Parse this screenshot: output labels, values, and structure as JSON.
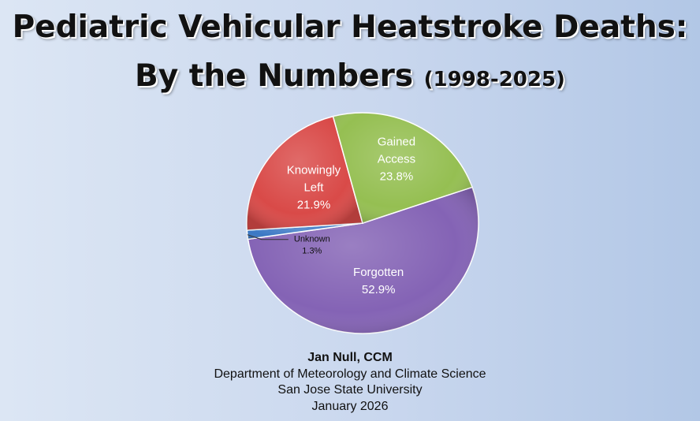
{
  "chart_data": {
    "type": "pie",
    "title_line1": "Pediatric Vehicular Heatstroke Deaths:",
    "title_line2": "By the Numbers",
    "title_years": "(1998-2025)",
    "slices": [
      {
        "label_lines": [
          "Forgotten"
        ],
        "percent_label": "52.9%",
        "value": 52.9,
        "color": "#8463b5"
      },
      {
        "label_lines": [
          "Unknown"
        ],
        "percent_label": "1.3%",
        "value": 1.3,
        "color": "#3b78c4"
      },
      {
        "label_lines": [
          "Knowingly",
          "Left"
        ],
        "percent_label": "21.9%",
        "value": 21.9,
        "color": "#d94a48"
      },
      {
        "label_lines": [
          "Gained",
          "Access"
        ],
        "percent_label": "23.8%",
        "value": 23.8,
        "color": "#95bf52"
      }
    ],
    "start_angle_deg": -19
  },
  "credits": {
    "author": "Jan Null, CCM",
    "department": "Department of Meteorology and Climate Science",
    "university": "San Jose State University",
    "date": "January 2026"
  }
}
